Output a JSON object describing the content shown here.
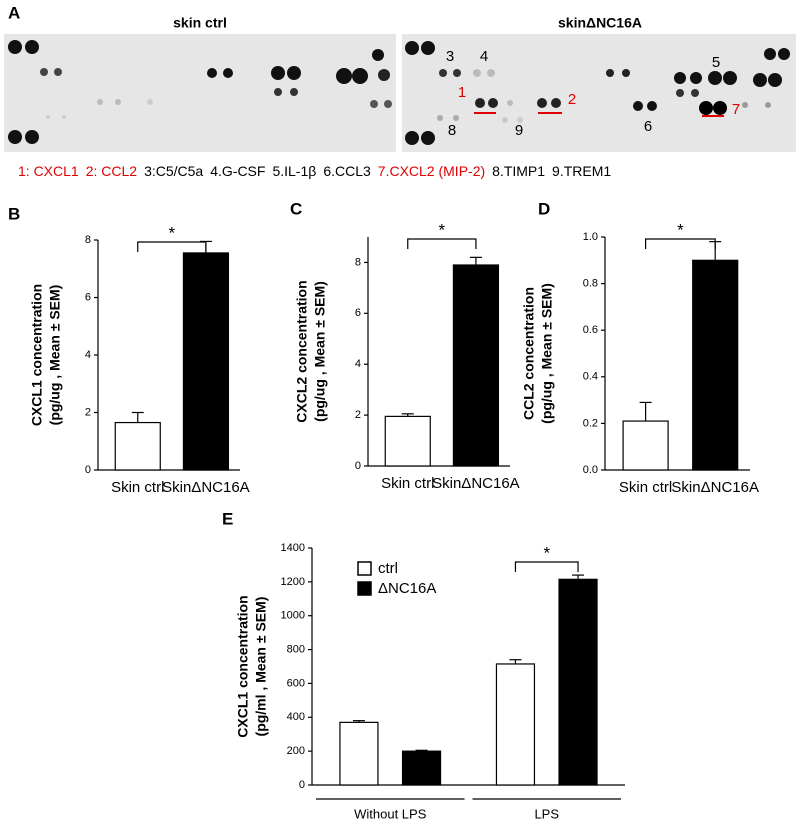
{
  "panel_a": {
    "letter": "A",
    "left_title": "skin ctrl",
    "right_title": "skinΔNC16A",
    "spot_numbers": [
      "1",
      "2",
      "3",
      "4",
      "5",
      "6",
      "7",
      "8",
      "9"
    ],
    "key": [
      {
        "text": "1: CXCL1",
        "color": "#e00000"
      },
      {
        "text": "2: CCL2",
        "color": "#e00000"
      },
      {
        "text": "3:C5/C5a",
        "color": "#000000"
      },
      {
        "text": "4.G-CSF",
        "color": "#000000"
      },
      {
        "text": "5.IL-1β",
        "color": "#000000"
      },
      {
        "text": "6.CCL3",
        "color": "#000000"
      },
      {
        "text": "7.CXCL2 (MIP-2)",
        "color": "#e00000"
      },
      {
        "text": "8.TIMP1",
        "color": "#000000"
      },
      {
        "text": "9.TREM1",
        "color": "#000000"
      }
    ]
  },
  "chart_data": [
    {
      "type": "bar",
      "letter": "B",
      "ylabel": [
        "CXCL1 concentration",
        "(pg/ug , Mean ± SEM)"
      ],
      "categories": [
        "Skin ctrl",
        "SkinΔNC16A"
      ],
      "values": [
        1.65,
        7.55
      ],
      "errors": [
        0.35,
        0.4
      ],
      "colors": [
        "#ffffff",
        "#000000"
      ],
      "ylim": [
        0,
        8
      ],
      "yticks": [
        0,
        2,
        4,
        6,
        8
      ],
      "significance": "*"
    },
    {
      "type": "bar",
      "letter": "C",
      "ylabel": [
        "CXCL2 concentration",
        "(pg/ug , Mean ± SEM)"
      ],
      "categories": [
        "Skin ctrl",
        "SkinΔNC16A"
      ],
      "values": [
        1.95,
        7.9
      ],
      "errors": [
        0.1,
        0.3
      ],
      "colors": [
        "#ffffff",
        "#000000"
      ],
      "ylim": [
        0,
        9
      ],
      "yticks": [
        0,
        2,
        4,
        6,
        8
      ],
      "significance": "*"
    },
    {
      "type": "bar",
      "letter": "D",
      "ylabel": [
        "CCL2 concentration",
        "(pg/ug , Mean ± SEM)"
      ],
      "categories": [
        "Skin ctrl",
        "SkinΔNC16A"
      ],
      "values": [
        0.21,
        0.9
      ],
      "errors": [
        0.08,
        0.08
      ],
      "colors": [
        "#ffffff",
        "#000000"
      ],
      "ylim": [
        0,
        1
      ],
      "yticks": [
        {
          "value": 0,
          "label": "0.0"
        },
        0.2,
        0.4,
        0.6,
        0.8,
        {
          "value": 1,
          "label": "1.0"
        }
      ],
      "significance": "*"
    },
    {
      "type": "grouped_bar",
      "letter": "E",
      "ylabel": [
        "CXCL1 concentration",
        "(pg/ml , Mean ± SEM)"
      ],
      "categories": [
        "Without LPS",
        "LPS"
      ],
      "series": [
        {
          "name": "ctrl",
          "color": "#ffffff",
          "values": [
            370,
            715
          ],
          "errors": [
            10,
            25
          ]
        },
        {
          "name": "ΔNC16A",
          "color": "#000000",
          "values": [
            200,
            1215
          ],
          "errors": [
            5,
            25
          ]
        }
      ],
      "ylim": [
        0,
        1400
      ],
      "yticks": [
        0,
        200,
        400,
        600,
        800,
        1000,
        1200,
        1400
      ],
      "significance": "*",
      "significance_category": 1
    }
  ]
}
